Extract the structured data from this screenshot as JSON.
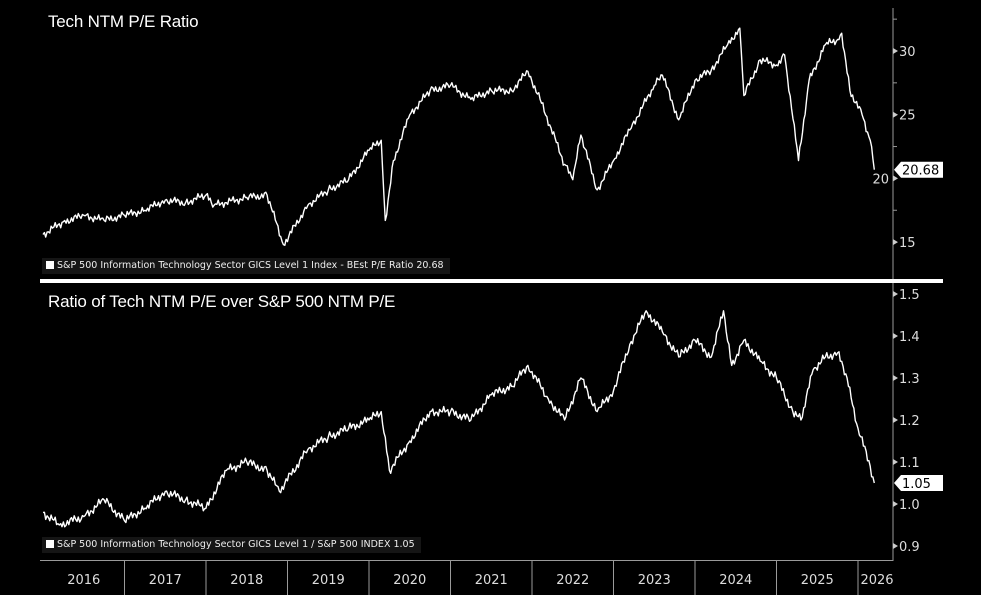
{
  "chart_data": [
    {
      "type": "line",
      "title": "Tech NTM P/E Ratio",
      "legend": "S&P 500 Information Technology Sector GICS Level 1 Index - BEst P/E Ratio 20.68",
      "last_value_label": "20.68",
      "ylim": [
        12.5,
        33.5
      ],
      "yticks": [
        15,
        20,
        25,
        30
      ],
      "ytick_labels": [
        "15",
        "20",
        "25",
        "30"
      ],
      "series": [
        {
          "name": "S&P 500 Information Technology Sector GICS Level 1 Index - BEst P/E Ratio",
          "x": [
            2016.0,
            2016.25,
            2016.5,
            2016.75,
            2017.0,
            2017.25,
            2017.5,
            2017.75,
            2018.0,
            2018.1,
            2018.5,
            2018.75,
            2018.95,
            2019.25,
            2019.5,
            2019.75,
            2020.0,
            2020.15,
            2020.2,
            2020.3,
            2020.5,
            2020.75,
            2021.0,
            2021.25,
            2021.5,
            2021.75,
            2021.95,
            2022.1,
            2022.4,
            2022.5,
            2022.6,
            2022.8,
            2023.0,
            2023.2,
            2023.5,
            2023.6,
            2023.8,
            2024.0,
            2024.2,
            2024.4,
            2024.55,
            2024.6,
            2024.8,
            2025.0,
            2025.1,
            2025.27,
            2025.4,
            2025.6,
            2025.75,
            2025.8,
            2025.9,
            2026.05,
            2026.15,
            2026.2
          ],
          "values": [
            15.6,
            16.6,
            17.1,
            16.7,
            17.1,
            17.5,
            18.3,
            18.1,
            18.7,
            17.9,
            18.5,
            18.7,
            14.8,
            17.9,
            19.1,
            19.9,
            22.2,
            23.0,
            16.7,
            21.4,
            25.0,
            26.9,
            27.3,
            26.2,
            26.9,
            26.9,
            28.4,
            26.2,
            21.1,
            19.9,
            23.4,
            19.1,
            21.4,
            23.8,
            27.3,
            28.1,
            24.6,
            27.7,
            28.5,
            30.5,
            31.8,
            26.5,
            29.3,
            28.9,
            29.7,
            21.4,
            27.7,
            30.5,
            30.9,
            31.4,
            26.9,
            25.0,
            23.0,
            20.68
          ]
        }
      ]
    },
    {
      "type": "line",
      "title": "Ratio of Tech NTM P/E over S&P 500 NTM P/E",
      "legend": "S&P 500 Information Technology Sector GICS Level 1 / S&P 500 INDEX 1.05",
      "last_value_label": "1.05",
      "ylim": [
        0.88,
        1.53
      ],
      "yticks": [
        0.9,
        1.0,
        1.1,
        1.2,
        1.3,
        1.4,
        1.5
      ],
      "ytick_labels": [
        "0.9",
        "1.0",
        "1.1",
        "1.2",
        "1.3",
        "1.4",
        "1.5"
      ],
      "series": [
        {
          "name": "S&P 500 Information Technology Sector GICS Level 1 / S&P 500 INDEX",
          "x": [
            2016.0,
            2016.2,
            2016.5,
            2016.75,
            2017.0,
            2017.25,
            2017.5,
            2017.75,
            2018.0,
            2018.25,
            2018.5,
            2018.75,
            2018.9,
            2019.25,
            2019.5,
            2019.75,
            2020.0,
            2020.15,
            2020.25,
            2020.5,
            2020.75,
            2021.0,
            2021.25,
            2021.5,
            2021.75,
            2021.95,
            2022.2,
            2022.4,
            2022.6,
            2022.8,
            2023.0,
            2023.2,
            2023.4,
            2023.6,
            2023.8,
            2024.0,
            2024.2,
            2024.35,
            2024.45,
            2024.6,
            2024.8,
            2025.0,
            2025.2,
            2025.3,
            2025.45,
            2025.6,
            2025.75,
            2025.85,
            2026.0,
            2026.15,
            2026.2
          ],
          "values": [
            0.98,
            0.95,
            0.97,
            1.01,
            0.96,
            0.99,
            1.03,
            1.01,
            0.99,
            1.08,
            1.1,
            1.08,
            1.03,
            1.13,
            1.16,
            1.18,
            1.2,
            1.22,
            1.08,
            1.15,
            1.22,
            1.22,
            1.2,
            1.26,
            1.28,
            1.33,
            1.25,
            1.2,
            1.3,
            1.22,
            1.27,
            1.38,
            1.46,
            1.41,
            1.35,
            1.39,
            1.35,
            1.46,
            1.33,
            1.39,
            1.34,
            1.3,
            1.22,
            1.2,
            1.32,
            1.35,
            1.36,
            1.31,
            1.18,
            1.09,
            1.05
          ]
        }
      ]
    }
  ],
  "x_axis": {
    "xlim": [
      2016.0,
      2026.4
    ],
    "tick_labels": [
      "2016",
      "2017",
      "2018",
      "2019",
      "2020",
      "2021",
      "2022",
      "2023",
      "2024",
      "2025",
      "2026"
    ]
  }
}
